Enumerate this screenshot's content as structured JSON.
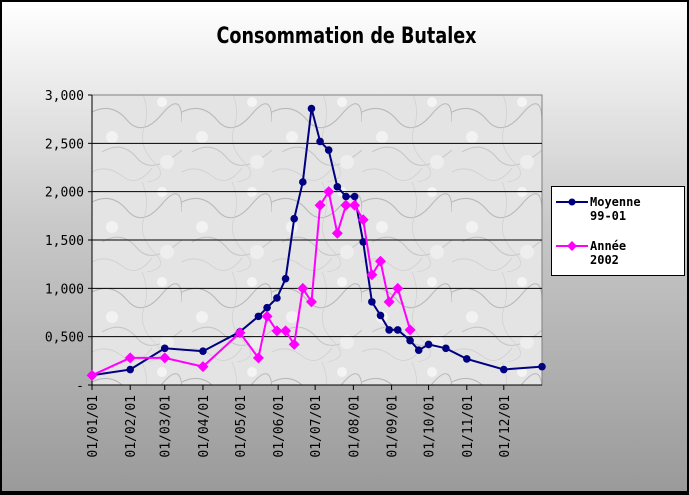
{
  "chart_data": {
    "type": "line",
    "title": "Consommation de Butalex",
    "xlabel": "",
    "ylabel": "",
    "ylim": [
      0,
      3000
    ],
    "ytick_labels": [
      "-",
      "0,500",
      "1,000",
      "1,500",
      "2,000",
      "2,500",
      "3,000"
    ],
    "ytick_values": [
      0,
      500,
      1000,
      1500,
      2000,
      2500,
      3000
    ],
    "x_start": "2001-01-01",
    "x_end": "2002-01-01",
    "xtick_labels": [
      "01/01/01",
      "01/02/01",
      "01/03/01",
      "01/04/01",
      "01/05/01",
      "01/06/01",
      "01/07/01",
      "01/08/01",
      "01/09/01",
      "01/10/01",
      "01/11/01",
      "01/12/01"
    ],
    "xtick_dates": [
      "2001-01-01",
      "2001-02-01",
      "2001-03-01",
      "2001-04-01",
      "2001-05-01",
      "2001-06-01",
      "2001-07-01",
      "2001-08-01",
      "2001-09-01",
      "2001-10-01",
      "2001-11-01",
      "2001-12-01"
    ],
    "grid": true,
    "legend_position": "right",
    "series": [
      {
        "name": "Moyenne 99-01",
        "color": "#000080",
        "marker": "circle",
        "points": [
          [
            "2001-01-01",
            100
          ],
          [
            "2001-02-01",
            160
          ],
          [
            "2001-03-01",
            380
          ],
          [
            "2001-04-01",
            350
          ],
          [
            "2001-05-01",
            550
          ],
          [
            "2001-05-16",
            710
          ],
          [
            "2001-05-23",
            800
          ],
          [
            "2001-05-31",
            900
          ],
          [
            "2001-06-07",
            1100
          ],
          [
            "2001-06-14",
            1720
          ],
          [
            "2001-06-21",
            2100
          ],
          [
            "2001-06-28",
            2860
          ],
          [
            "2001-07-05",
            2520
          ],
          [
            "2001-07-12",
            2430
          ],
          [
            "2001-07-19",
            2050
          ],
          [
            "2001-07-26",
            1950
          ],
          [
            "2001-08-02",
            1950
          ],
          [
            "2001-08-09",
            1480
          ],
          [
            "2001-08-16",
            860
          ],
          [
            "2001-08-23",
            720
          ],
          [
            "2001-08-30",
            570
          ],
          [
            "2001-09-06",
            570
          ],
          [
            "2001-09-16",
            460
          ],
          [
            "2001-09-23",
            360
          ],
          [
            "2001-10-01",
            420
          ],
          [
            "2001-10-15",
            380
          ],
          [
            "2001-11-01",
            270
          ],
          [
            "2001-12-01",
            160
          ],
          [
            "2002-01-01",
            190
          ]
        ]
      },
      {
        "name": "Année 2002",
        "color": "#ff00ff",
        "marker": "diamond",
        "points": [
          [
            "2001-01-01",
            100
          ],
          [
            "2001-02-01",
            280
          ],
          [
            "2001-03-01",
            280
          ],
          [
            "2001-04-01",
            190
          ],
          [
            "2001-05-01",
            540
          ],
          [
            "2001-05-16",
            280
          ],
          [
            "2001-05-23",
            710
          ],
          [
            "2001-05-31",
            560
          ],
          [
            "2001-06-07",
            560
          ],
          [
            "2001-06-14",
            420
          ],
          [
            "2001-06-21",
            1000
          ],
          [
            "2001-06-28",
            860
          ],
          [
            "2001-07-05",
            1860
          ],
          [
            "2001-07-12",
            2000
          ],
          [
            "2001-07-19",
            1570
          ],
          [
            "2001-07-26",
            1860
          ],
          [
            "2001-08-02",
            1860
          ],
          [
            "2001-08-09",
            1710
          ],
          [
            "2001-08-16",
            1140
          ],
          [
            "2001-08-23",
            1280
          ],
          [
            "2001-08-30",
            860
          ],
          [
            "2001-09-06",
            1000
          ],
          [
            "2001-09-16",
            570
          ]
        ]
      }
    ]
  }
}
